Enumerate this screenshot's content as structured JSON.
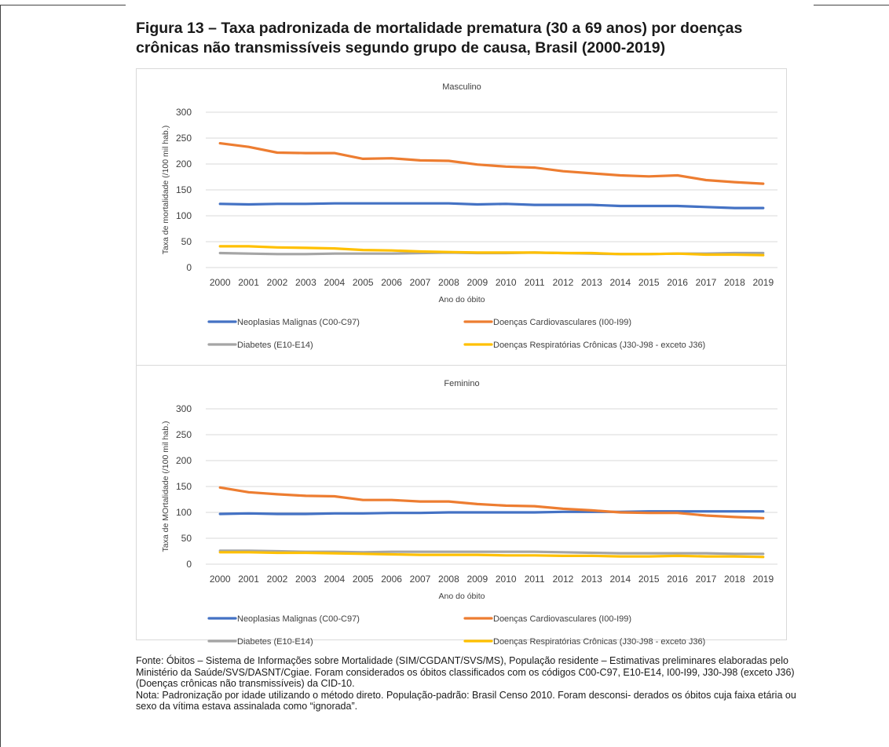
{
  "figure_title": "Figura 13 – Taxa padronizada de mortalidade prematura (30 a 69 anos) por doenças crônicas não transmissíveis segundo grupo de causa, Brasil (2000-2019)",
  "footnote": {
    "fonte": "Fonte: Óbitos – Sistema de Informações sobre Mortalidade (SIM/CGDANT/SVS/MS), População residente – Estimativas preliminares elaboradas pelo Ministério da Saúde/SVS/DASNT/Cgiae. Foram considerados os óbitos classificados com os códigos C00-C97, E10-E14, I00-I99, J30-J98 (exceto J36) (Doenças crônicas não transmissíveis) da CID-10.",
    "nota": "Nota: Padronização por idade utilizando o método direto. População-padrão: Brasil Censo 2010. Foram desconsi- derados os óbitos cuja faixa etária ou sexo da vítima estava assinalada como “ignorada”."
  },
  "chart_data": [
    {
      "type": "line",
      "title": "Masculino",
      "xlabel": "Ano do óbito",
      "ylabel": "Taxa de mortalidade (/100 mil hab.)",
      "ylim": [
        0,
        300
      ],
      "yticks": [
        "0",
        "50",
        "100",
        "150",
        "200",
        "250",
        "300"
      ],
      "grid": true,
      "legend_position": "bottom",
      "categories": [
        "2000",
        "2001",
        "2002",
        "2003",
        "2004",
        "2005",
        "2006",
        "2007",
        "2008",
        "2009",
        "2010",
        "2011",
        "2012",
        "2013",
        "2014",
        "2015",
        "2016",
        "2017",
        "2018",
        "2019"
      ],
      "series": [
        {
          "name": "Neoplasias Malignas (C00-C97)",
          "color": "#4472c4",
          "values": [
            123,
            122,
            123,
            123,
            124,
            124,
            124,
            124,
            124,
            122,
            123,
            121,
            121,
            121,
            119,
            119,
            119,
            117,
            115,
            115
          ]
        },
        {
          "name": "Doenças Cardiovasculares (I00-I99)",
          "color": "#ed7d31",
          "values": [
            240,
            233,
            222,
            221,
            221,
            210,
            211,
            207,
            206,
            199,
            195,
            193,
            186,
            182,
            178,
            176,
            178,
            169,
            165,
            162
          ]
        },
        {
          "name": "Diabetes (E10-E14)",
          "color": "#a5a5a5",
          "values": [
            28,
            27,
            26,
            26,
            27,
            27,
            27,
            28,
            29,
            28,
            28,
            29,
            28,
            27,
            26,
            26,
            27,
            27,
            28,
            28
          ]
        },
        {
          "name": "Doenças Respiratórias Crônicas (J30-J98 - exceto J36)",
          "color": "#ffc000",
          "values": [
            41,
            41,
            39,
            38,
            37,
            34,
            33,
            31,
            30,
            29,
            29,
            29,
            28,
            28,
            26,
            26,
            27,
            25,
            25,
            24
          ]
        }
      ]
    },
    {
      "type": "line",
      "title": "Feminino",
      "xlabel": "Ano do óbito",
      "ylabel": "Taxa de MOrtalidade (/100 mil hab.)",
      "ylim": [
        0,
        300
      ],
      "yticks": [
        "0",
        "50",
        "100",
        "150",
        "200",
        "250",
        "300"
      ],
      "grid": true,
      "legend_position": "bottom",
      "categories": [
        "2000",
        "2001",
        "2002",
        "2003",
        "2004",
        "2005",
        "2006",
        "2007",
        "2008",
        "2009",
        "2010",
        "2011",
        "2012",
        "2013",
        "2014",
        "2015",
        "2016",
        "2017",
        "2018",
        "2019"
      ],
      "series": [
        {
          "name": "Neoplasias Malignas (C00-C97)",
          "color": "#4472c4",
          "values": [
            97,
            98,
            97,
            97,
            98,
            98,
            99,
            99,
            100,
            100,
            100,
            100,
            101,
            101,
            101,
            102,
            102,
            102,
            102,
            102
          ]
        },
        {
          "name": "Doenças Cardiovasculares (I00-I99)",
          "color": "#ed7d31",
          "values": [
            148,
            139,
            135,
            132,
            131,
            124,
            124,
            121,
            121,
            116,
            113,
            112,
            107,
            104,
            100,
            99,
            99,
            94,
            91,
            89
          ]
        },
        {
          "name": "Diabetes (E10-E14)",
          "color": "#a5a5a5",
          "values": [
            26,
            26,
            25,
            24,
            24,
            23,
            24,
            24,
            24,
            24,
            24,
            24,
            23,
            22,
            21,
            21,
            21,
            21,
            20,
            20
          ]
        },
        {
          "name": "Doenças Respiratórias Crônicas (J30-J98 - exceto J36)",
          "color": "#ffc000",
          "values": [
            23,
            23,
            22,
            22,
            21,
            20,
            19,
            18,
            18,
            18,
            17,
            17,
            16,
            16,
            15,
            15,
            16,
            15,
            15,
            14
          ]
        }
      ]
    }
  ]
}
